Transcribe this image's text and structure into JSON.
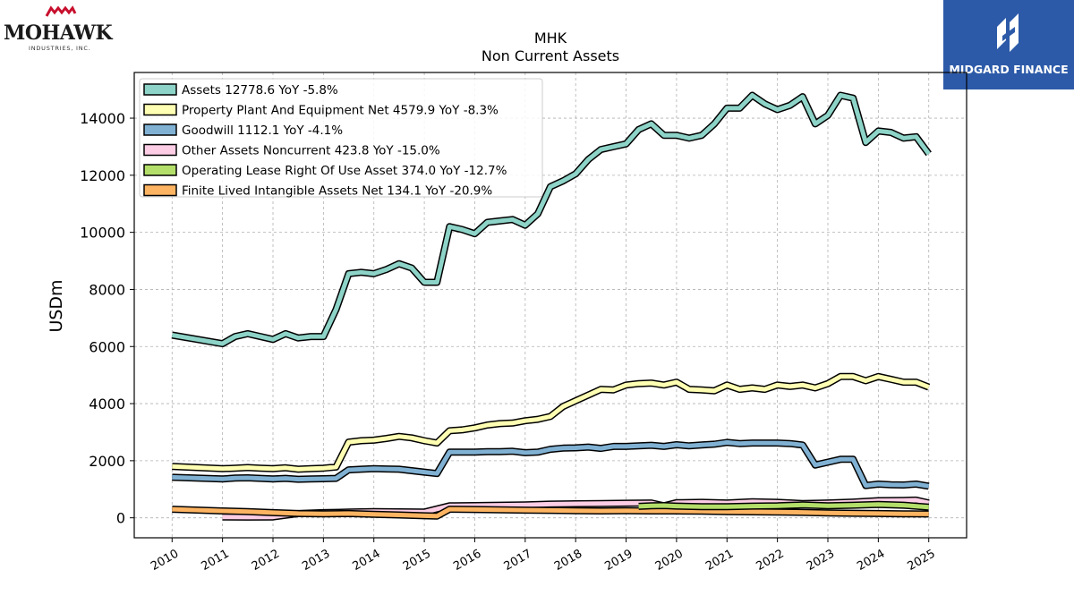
{
  "header": {
    "left_logo": {
      "name": "MOHAWK",
      "subtitle": "INDUSTRIES, INC."
    },
    "right_logo": {
      "name": "MIDGARD FINANCE",
      "bg_color": "#2c5aa8"
    }
  },
  "chart_data": {
    "type": "line",
    "title": "MHK",
    "subtitle": "Non Current  Assets",
    "xlabel": "",
    "ylabel": "USDm",
    "x_tick_labels": [
      "2010",
      "2011",
      "2012",
      "2013",
      "2014",
      "2015",
      "2016",
      "2017",
      "2018",
      "2019",
      "2020",
      "2021",
      "2022",
      "2023",
      "2024",
      "2025"
    ],
    "y_tick_labels": [
      "0",
      "2000",
      "4000",
      "6000",
      "8000",
      "10000",
      "12000",
      "14000"
    ],
    "ylim": [
      -700,
      15600
    ],
    "xlim": [
      2009.25,
      2025.75
    ],
    "grid": true,
    "legend_position": "top-left",
    "series": [
      {
        "name": "Assets",
        "legend_label": "Assets  12778.6 YoY -5.8%",
        "color": "#8dd3c7",
        "x": [
          2010.0,
          2011.0,
          2011.25,
          2011.5,
          2011.75,
          2012.0,
          2012.25,
          2012.5,
          2012.75,
          2013.0,
          2013.25,
          2013.5,
          2013.75,
          2014.0,
          2014.25,
          2014.5,
          2014.75,
          2015.0,
          2015.25,
          2015.5,
          2015.75,
          2016.0,
          2016.25,
          2016.5,
          2016.75,
          2017.0,
          2017.25,
          2017.5,
          2017.75,
          2018.0,
          2018.25,
          2018.5,
          2018.75,
          2019.0,
          2019.25,
          2019.5,
          2019.75,
          2020.0,
          2020.25,
          2020.5,
          2020.75,
          2021.0,
          2021.25,
          2021.5,
          2021.75,
          2022.0,
          2022.25,
          2022.5,
          2022.75,
          2023.0,
          2023.25,
          2023.5,
          2023.75,
          2024.0,
          2024.25,
          2024.5,
          2024.75,
          2025.0
        ],
        "y": [
          6400,
          6100,
          6350,
          6450,
          6350,
          6250,
          6450,
          6300,
          6350,
          6350,
          7300,
          8550,
          8600,
          8550,
          8700,
          8900,
          8750,
          8250,
          8250,
          10200,
          10100,
          9950,
          10350,
          10400,
          10450,
          10250,
          10650,
          11600,
          11800,
          12050,
          12550,
          12900,
          13000,
          13100,
          13600,
          13800,
          13400,
          13400,
          13300,
          13400,
          13800,
          14350,
          14350,
          14800,
          14500,
          14300,
          14450,
          14750,
          13800,
          14100,
          14800,
          14700,
          13150,
          13550,
          13500,
          13300,
          13350,
          12750
        ]
      },
      {
        "name": "Property Plant And Equipment Net",
        "legend_label": "Property Plant And Equipment Net  4579.9 YoY -8.3%",
        "color": "#ffffb3",
        "x": [
          2010.0,
          2011.0,
          2011.25,
          2011.5,
          2011.75,
          2012.0,
          2012.25,
          2012.5,
          2012.75,
          2013.0,
          2013.25,
          2013.5,
          2013.75,
          2014.0,
          2014.25,
          2014.5,
          2014.75,
          2015.0,
          2015.25,
          2015.5,
          2015.75,
          2016.0,
          2016.25,
          2016.5,
          2016.75,
          2017.0,
          2017.25,
          2017.5,
          2017.75,
          2018.0,
          2018.25,
          2018.5,
          2018.75,
          2019.0,
          2019.25,
          2019.5,
          2019.75,
          2020.0,
          2020.25,
          2020.5,
          2020.75,
          2021.0,
          2021.25,
          2021.5,
          2021.75,
          2022.0,
          2022.25,
          2022.5,
          2022.75,
          2023.0,
          2023.25,
          2023.5,
          2023.75,
          2024.0,
          2024.25,
          2024.5,
          2024.75,
          2025.0
        ],
        "y": [
          1800,
          1720,
          1740,
          1760,
          1740,
          1720,
          1750,
          1700,
          1720,
          1740,
          1780,
          2650,
          2700,
          2720,
          2780,
          2850,
          2800,
          2700,
          2620,
          3050,
          3080,
          3150,
          3250,
          3300,
          3320,
          3400,
          3450,
          3550,
          3900,
          4100,
          4300,
          4500,
          4480,
          4650,
          4700,
          4720,
          4650,
          4750,
          4500,
          4480,
          4450,
          4650,
          4500,
          4550,
          4500,
          4650,
          4600,
          4650,
          4550,
          4700,
          4950,
          4950,
          4800,
          4950,
          4850,
          4750,
          4750,
          4580
        ]
      },
      {
        "name": "Goodwill",
        "legend_label": "Goodwill  1112.1 YoY -4.1%",
        "color": "#80b1d3",
        "x": [
          2010.0,
          2011.0,
          2011.25,
          2011.5,
          2011.75,
          2012.0,
          2012.25,
          2012.5,
          2012.75,
          2013.0,
          2013.25,
          2013.5,
          2013.75,
          2014.0,
          2014.25,
          2014.5,
          2014.75,
          2015.0,
          2015.25,
          2015.5,
          2015.75,
          2016.0,
          2016.25,
          2016.5,
          2016.75,
          2017.0,
          2017.25,
          2017.5,
          2017.75,
          2018.0,
          2018.25,
          2018.5,
          2018.75,
          2019.0,
          2019.25,
          2019.5,
          2019.75,
          2020.0,
          2020.25,
          2020.5,
          2020.75,
          2021.0,
          2021.25,
          2021.5,
          2021.75,
          2022.0,
          2022.25,
          2022.5,
          2022.75,
          2023.0,
          2023.25,
          2023.5,
          2023.75,
          2024.0,
          2024.25,
          2024.5,
          2024.75,
          2025.0
        ],
        "y": [
          1420,
          1360,
          1390,
          1400,
          1380,
          1360,
          1380,
          1350,
          1360,
          1370,
          1380,
          1680,
          1700,
          1720,
          1710,
          1700,
          1650,
          1600,
          1550,
          2300,
          2300,
          2300,
          2320,
          2320,
          2330,
          2280,
          2300,
          2400,
          2440,
          2450,
          2480,
          2430,
          2500,
          2500,
          2520,
          2540,
          2500,
          2560,
          2520,
          2550,
          2580,
          2640,
          2600,
          2620,
          2620,
          2620,
          2600,
          2550,
          1850,
          1950,
          2050,
          2050,
          1130,
          1180,
          1160,
          1150,
          1180,
          1110
        ]
      },
      {
        "name": "Other Assets Noncurrent",
        "legend_label": "Other Assets Noncurrent  423.8 YoY -15.0%",
        "color": "#fccde5",
        "x": [
          2011.0,
          2011.5,
          2012.0,
          2012.5,
          2013.0,
          2013.5,
          2014.0,
          2014.5,
          2015.0,
          2015.5,
          2016.0,
          2016.5,
          2017.0,
          2017.5,
          2018.0,
          2018.5,
          2019.0,
          2019.5,
          2019.75,
          2020.0,
          2020.5,
          2021.0,
          2021.5,
          2022.0,
          2022.5,
          2023.0,
          2023.5,
          2024.0,
          2024.5,
          2024.75,
          2025.0
        ],
        "y": [
          30,
          25,
          30,
          150,
          180,
          200,
          220,
          210,
          200,
          420,
          430,
          440,
          450,
          480,
          490,
          500,
          510,
          520,
          420,
          530,
          540,
          520,
          560,
          540,
          500,
          520,
          550,
          600,
          610,
          620,
          520
        ]
      },
      {
        "name": "Operating Lease Right Of Use Asset",
        "legend_label": "Operating Lease Right Of Use Asset  374.0 YoY -12.7%",
        "color": "#b3de69",
        "x": [
          2019.25,
          2019.5,
          2019.75,
          2020.0,
          2020.5,
          2021.0,
          2021.5,
          2022.0,
          2022.5,
          2023.0,
          2023.5,
          2024.0,
          2024.5,
          2025.0
        ],
        "y": [
          400,
          420,
          430,
          410,
          390,
          390,
          410,
          420,
          450,
          420,
          440,
          470,
          440,
          374
        ]
      },
      {
        "name": "Finite Lived Intangible Assets Net",
        "legend_label": "Finite Lived Intangible Assets Net  134.1 YoY -20.9%",
        "color": "#fdb462",
        "x": [
          2010.0,
          2011.0,
          2011.5,
          2012.0,
          2012.5,
          2013.0,
          2013.5,
          2014.0,
          2014.5,
          2015.0,
          2015.25,
          2015.5,
          2016.0,
          2016.5,
          2017.0,
          2017.5,
          2018.0,
          2018.5,
          2019.0,
          2019.5,
          2020.0,
          2020.5,
          2021.0,
          2021.5,
          2022.0,
          2022.5,
          2023.0,
          2023.5,
          2024.0,
          2024.5,
          2025.0
        ],
        "y": [
          300,
          240,
          220,
          180,
          150,
          140,
          150,
          120,
          100,
          70,
          60,
          300,
          290,
          280,
          270,
          260,
          250,
          240,
          250,
          240,
          240,
          230,
          220,
          210,
          200,
          190,
          170,
          160,
          150,
          140,
          134
        ]
      }
    ]
  }
}
